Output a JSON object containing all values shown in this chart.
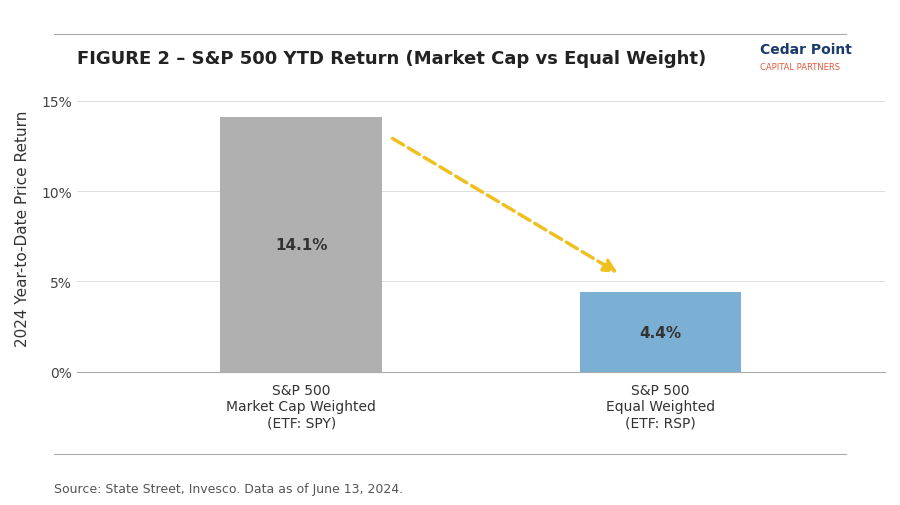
{
  "title": "FIGURE 2 – S&P 500 YTD Return (Market Cap vs Equal Weight)",
  "categories": [
    "S&P 500\nMarket Cap Weighted\n(ETF: SPY)",
    "S&P 500\nEqual Weighted\n(ETF: RSP)"
  ],
  "values": [
    14.1,
    4.4
  ],
  "bar_colors": [
    "#b0b0b0",
    "#7bafd4"
  ],
  "value_labels": [
    "14.1%",
    "4.4%"
  ],
  "ylabel": "2024 Year-to-Date Price Return",
  "ylim": [
    0,
    16
  ],
  "yticks": [
    0,
    5,
    10,
    15
  ],
  "ytick_labels": [
    "0%",
    "5%",
    "10%",
    "15%"
  ],
  "source_text": "Source: State Street, Invesco. Data as of June 13, 2024.",
  "background_color": "#ffffff",
  "arrow_color": "#f0c020",
  "title_fontsize": 13,
  "label_fontsize": 11,
  "ylabel_fontsize": 11,
  "tick_fontsize": 10,
  "source_fontsize": 9,
  "cedar_point_text": "Cedar Point",
  "cedar_point_sub": "CAPITAL PARTNERS",
  "cedar_point_color": "#1b3a6b",
  "cedar_point_sub_color": "#e05a3a"
}
